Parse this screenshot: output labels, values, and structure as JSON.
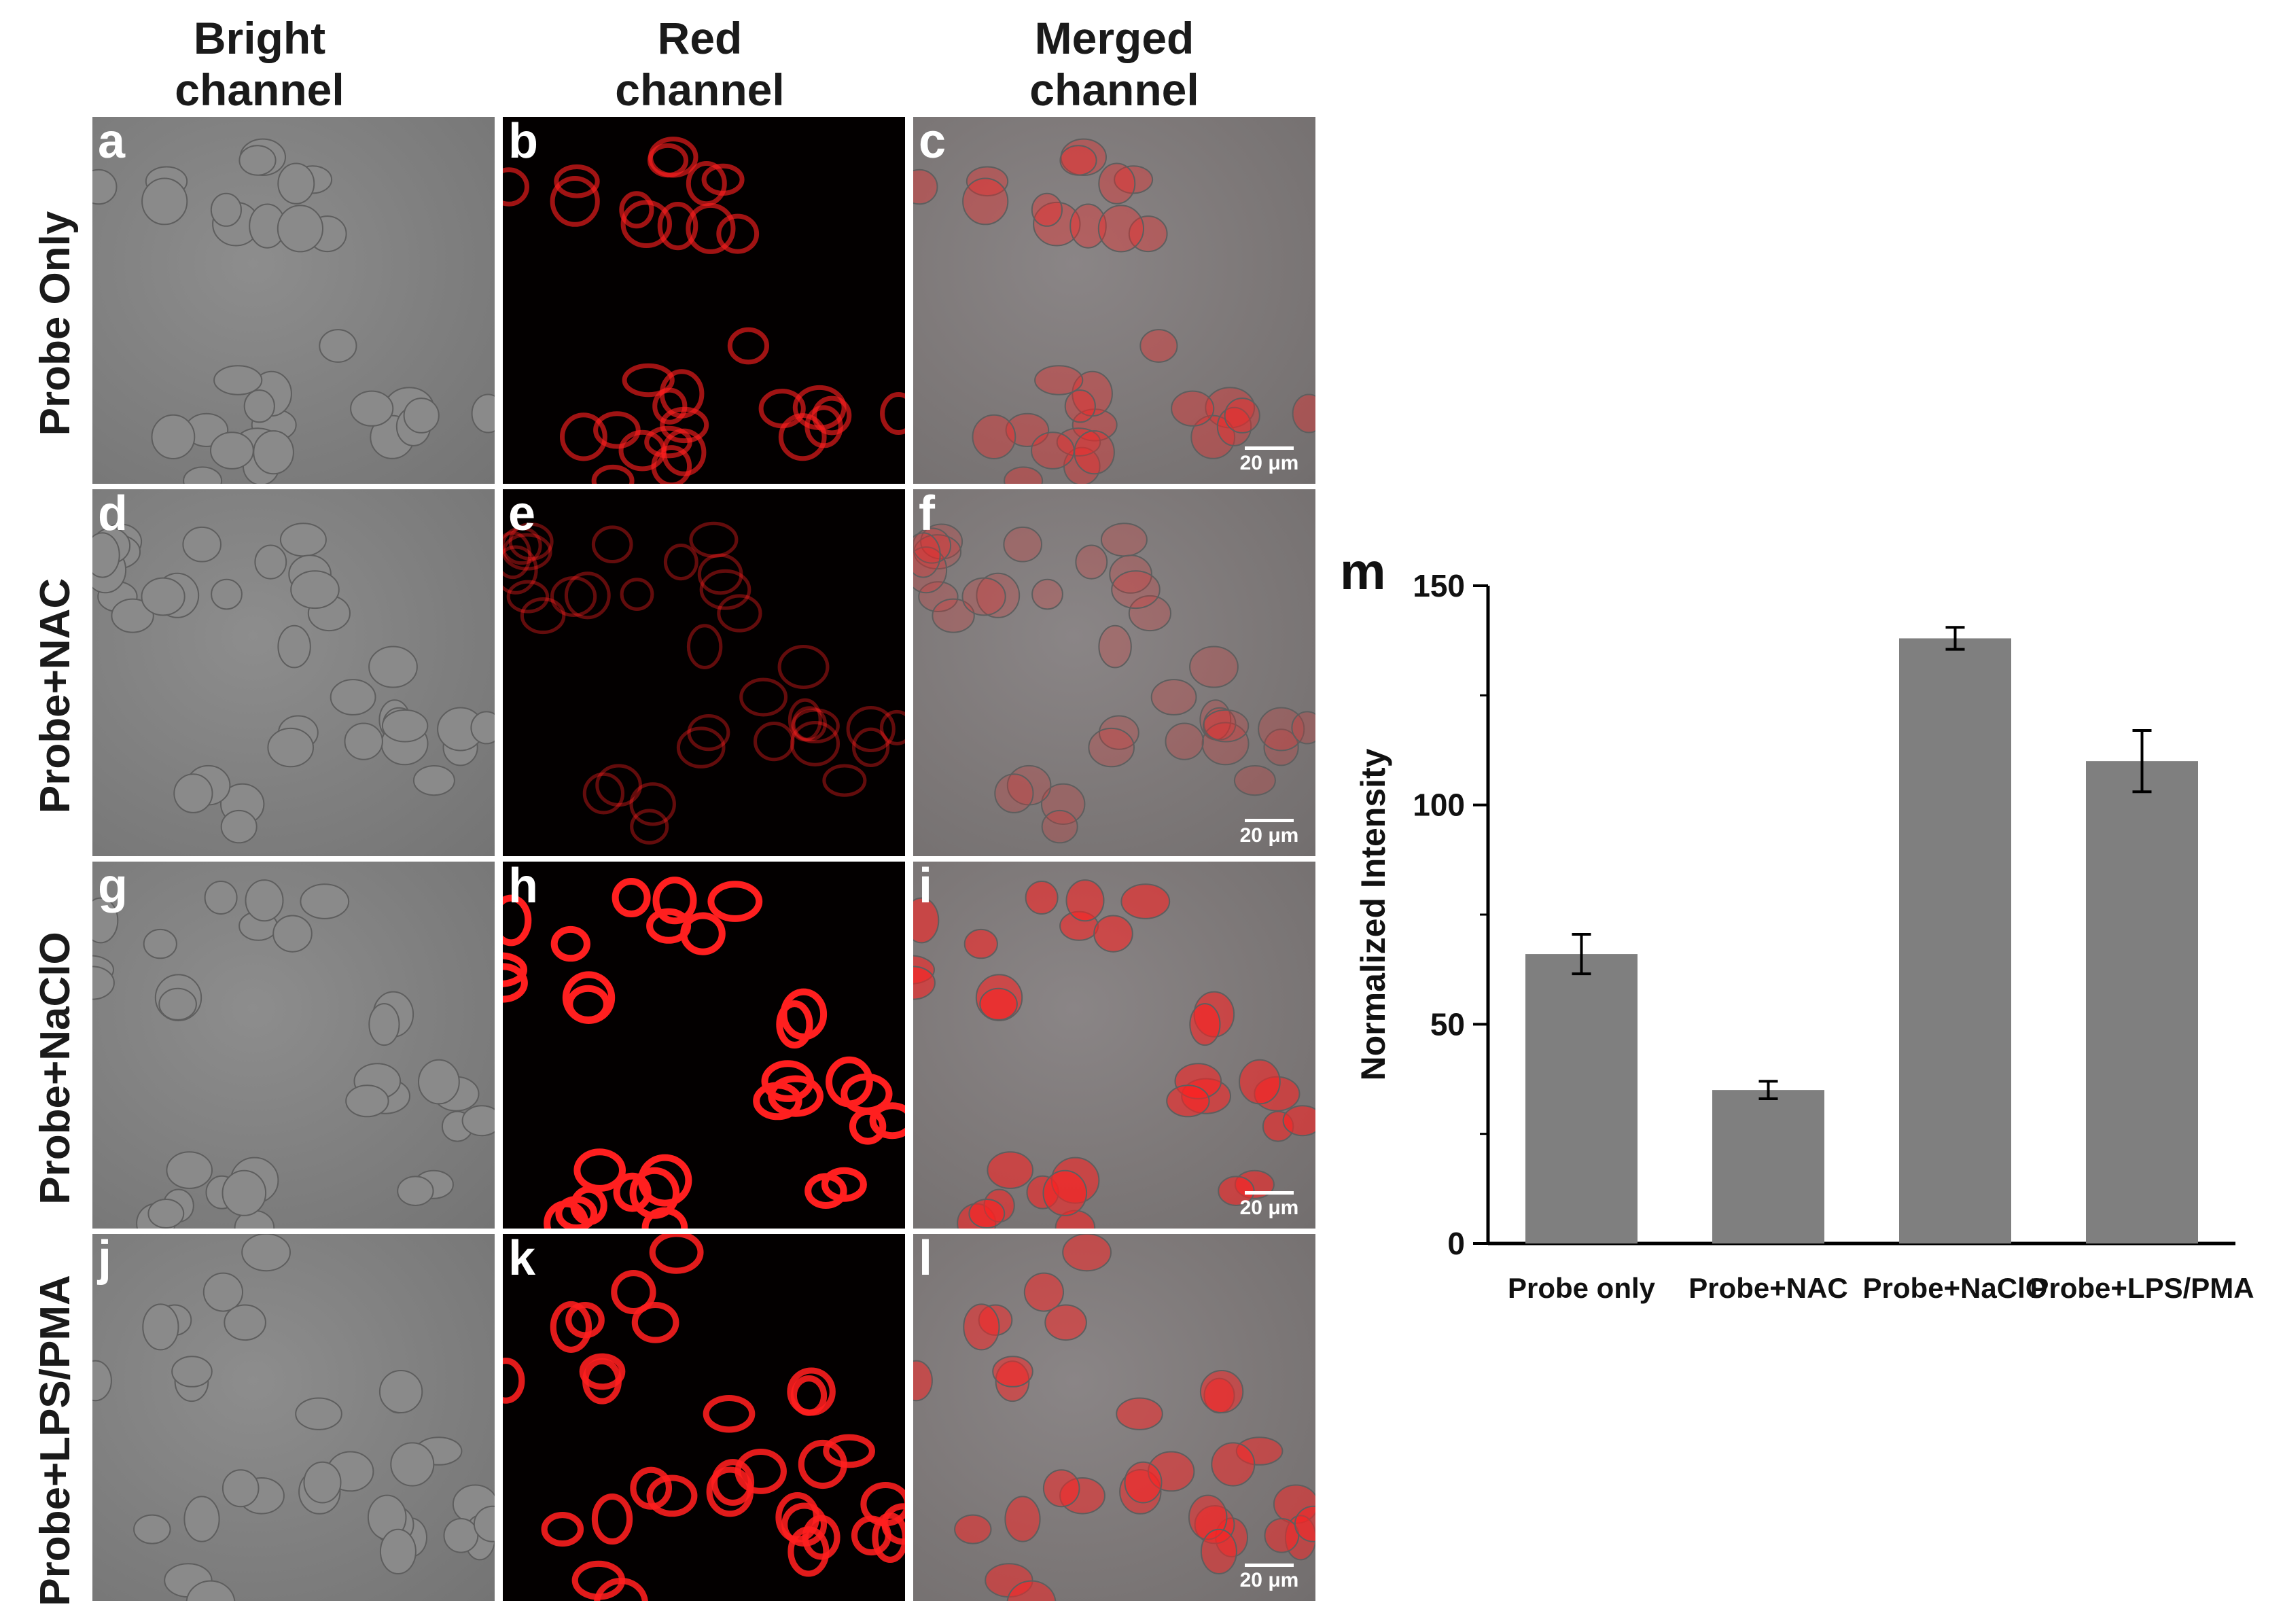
{
  "columns": [
    {
      "line1": "Bright",
      "line2": "channel"
    },
    {
      "line1": "Red",
      "line2": "channel"
    },
    {
      "line1": "Merged",
      "line2": "channel"
    }
  ],
  "rows": [
    "Probe Only",
    "Probe+NAC",
    "Probe+NaClO",
    "Probe+LPS/PMA"
  ],
  "panel_letters": [
    "a",
    "b",
    "c",
    "d",
    "e",
    "f",
    "g",
    "h",
    "i",
    "j",
    "k",
    "l"
  ],
  "scale_bar_label": "20 μm",
  "red_intensity": [
    0.5,
    0.18,
    1.0,
    0.85
  ],
  "colors": {
    "fluorescence": "#ff1f1f",
    "bar_fill": "#7f7f7f",
    "axis": "#000000"
  },
  "chart_data": {
    "panel_label": "m",
    "type": "bar",
    "categories": [
      "Probe only",
      "Probe+NAC",
      "Probe+NaClO",
      "Probe+LPS/PMA"
    ],
    "values": [
      66,
      35,
      138,
      110
    ],
    "errors": [
      4.5,
      2,
      2.5,
      7
    ],
    "ylabel": "Normalized Intensity",
    "xlabel": "",
    "ylim": [
      0,
      150
    ],
    "yticks": [
      0,
      50,
      100,
      150
    ],
    "grid": false
  }
}
